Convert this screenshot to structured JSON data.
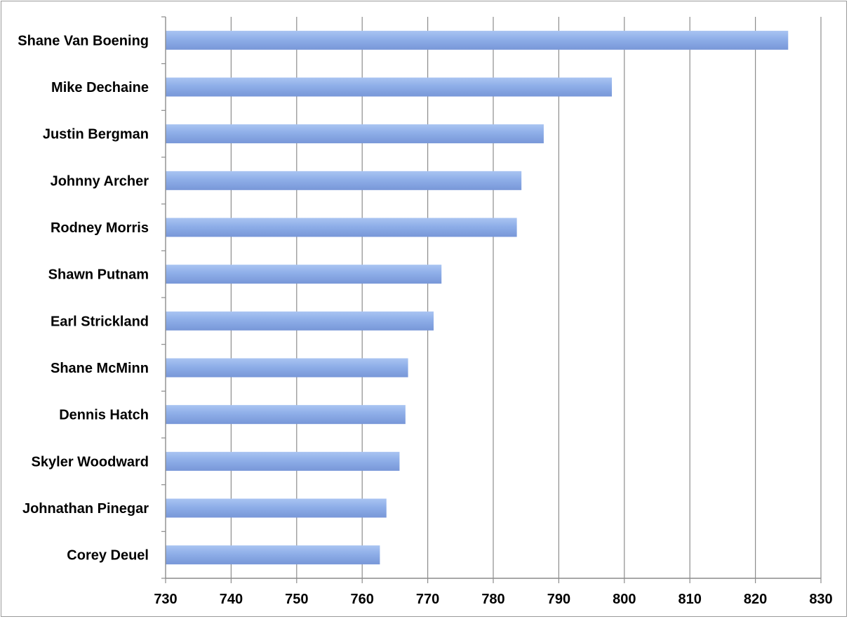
{
  "chart_data": {
    "type": "bar",
    "orientation": "horizontal",
    "title": "",
    "xlabel": "",
    "ylabel": "",
    "categories": [
      "Shane Van Boening",
      "Mike Dechaine",
      "Justin Bergman",
      "Johnny Archer",
      "Rodney Morris",
      "Shawn Putnam",
      "Earl Strickland",
      "Shane McMinn",
      "Dennis Hatch",
      "Skyler Woodward",
      "Johnathan Pinegar",
      "Corey Deuel"
    ],
    "values": [
      825.0,
      798.1,
      787.7,
      784.3,
      783.6,
      772.1,
      770.9,
      767.0,
      766.6,
      765.7,
      763.7,
      762.7
    ],
    "xlim": [
      730,
      830
    ],
    "xticks": [
      "730",
      "740",
      "750",
      "760",
      "770",
      "780",
      "790",
      "800",
      "810",
      "820",
      "830"
    ],
    "grid": true,
    "legend": "none",
    "bar_color": "#8eaee8"
  }
}
